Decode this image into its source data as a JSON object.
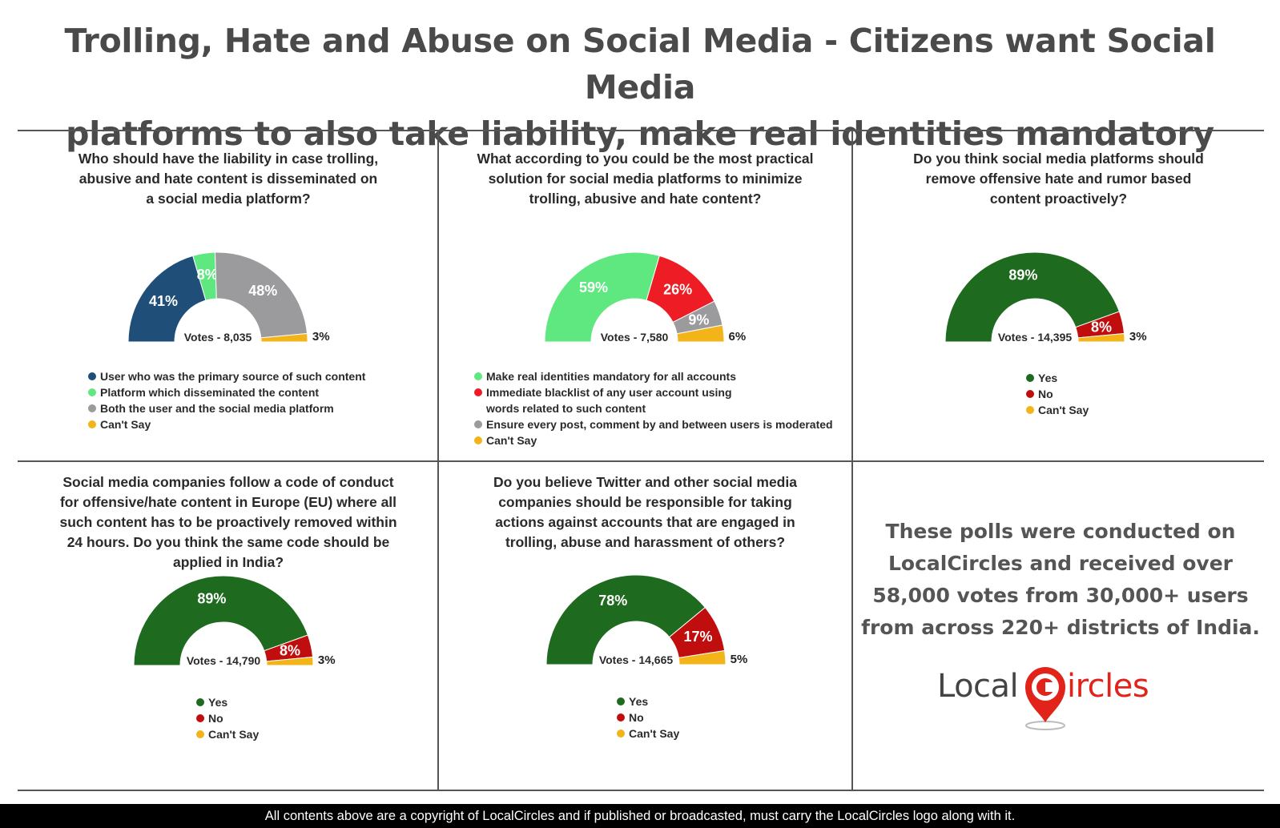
{
  "header": {
    "title_line1": "Trolling, Hate and Abuse on Social Media - Citizens want Social Media",
    "title_line2": "platforms to also take liability, make real identities mandatory"
  },
  "chart_data": [
    {
      "type": "pie",
      "subtype": "half-donut",
      "title_lines": [
        "Who should have the liability in case trolling,",
        "abusive and hate content is disseminated on",
        "a social media platform?"
      ],
      "votes_label": "Votes - 8,035",
      "categories": [
        "User who was the primary source of such content",
        "Platform which disseminated the content",
        "Both the user and the social media platform",
        "Can't Say"
      ],
      "values": [
        41,
        8,
        48,
        3
      ],
      "value_labels": [
        "41%",
        "8%",
        "48%",
        "3%"
      ],
      "colors": [
        "#1f4e79",
        "#5fe880",
        "#9b9b9e",
        "#f2b418"
      ],
      "label_colors": [
        "#ffffff",
        "#ffffff",
        "#ffffff",
        "#222222"
      ]
    },
    {
      "type": "pie",
      "subtype": "half-donut",
      "title_lines": [
        "What according to you could be the most practical",
        "solution for social media platforms to minimize",
        "trolling, abusive and hate content?"
      ],
      "votes_label": "Votes - 7,580",
      "categories": [
        "Make real identities mandatory for all accounts",
        "Immediate blacklist of any user account using words related to such content",
        "Ensure every post, comment by and between users is moderated",
        "Can't Say"
      ],
      "legend_lines": [
        [
          "Make real identities mandatory for all accounts"
        ],
        [
          "Immediate blacklist of any user account using",
          "words related to such content"
        ],
        [
          "Ensure every post, comment by and between users is moderated"
        ],
        [
          "Can't Say"
        ]
      ],
      "values": [
        59,
        26,
        9,
        6
      ],
      "value_labels": [
        "59%",
        "26%",
        "9%",
        "6%"
      ],
      "colors": [
        "#5fe880",
        "#ee1c24",
        "#9b9b9e",
        "#f2b418"
      ],
      "label_colors": [
        "#ffffff",
        "#ffffff",
        "#ffffff",
        "#222222"
      ]
    },
    {
      "type": "pie",
      "subtype": "half-donut",
      "title_lines": [
        "Do you think social media platforms should",
        "remove offensive hate and rumor based",
        "content proactively?"
      ],
      "votes_label": "Votes - 14,395",
      "categories": [
        "Yes",
        "No",
        "Can't Say"
      ],
      "values": [
        89,
        8,
        3
      ],
      "value_labels": [
        "89%",
        "8%",
        "3%"
      ],
      "colors": [
        "#1e6a1e",
        "#c00d0d",
        "#f2b418"
      ],
      "label_colors": [
        "#ffffff",
        "#ffffff",
        "#222222"
      ]
    },
    {
      "type": "pie",
      "subtype": "half-donut",
      "title_lines": [
        "Social media companies follow a code of conduct",
        "for offensive/hate content in Europe (EU) where all",
        "such content has to be proactively removed within",
        "24 hours. Do you think the same code should be",
        "applied in India?"
      ],
      "votes_label": "Votes - 14,790",
      "categories": [
        "Yes",
        "No",
        "Can't Say"
      ],
      "values": [
        89,
        8,
        3
      ],
      "value_labels": [
        "89%",
        "8%",
        "3%"
      ],
      "colors": [
        "#1e6a1e",
        "#c00d0d",
        "#f2b418"
      ],
      "label_colors": [
        "#ffffff",
        "#ffffff",
        "#222222"
      ]
    },
    {
      "type": "pie",
      "subtype": "half-donut",
      "title_lines": [
        "Do you believe Twitter and other social media",
        "companies should be responsible for taking",
        "actions against accounts that are engaged in",
        "trolling, abuse and harassment of others?"
      ],
      "votes_label": "Votes - 14,665",
      "categories": [
        "Yes",
        "No",
        "Can't Say"
      ],
      "values": [
        78,
        17,
        5
      ],
      "value_labels": [
        "78%",
        "17%",
        "5%"
      ],
      "colors": [
        "#1e6a1e",
        "#c00d0d",
        "#f2b418"
      ],
      "label_colors": [
        "#ffffff",
        "#ffffff",
        "#222222"
      ]
    }
  ],
  "note": {
    "line1": "These polls were conducted on",
    "line2": "LocalCircles and received over",
    "line3": "58,000 votes from 30,000+ users",
    "line4": "from across 220+ districts of India."
  },
  "logo": {
    "text_left": "Local",
    "text_right": "ircles",
    "accent_color": "#e2231a"
  },
  "footer": {
    "text": "All contents above are a copyright of LocalCircles and if published or broadcasted, must carry the LocalCircles logo along with it."
  }
}
